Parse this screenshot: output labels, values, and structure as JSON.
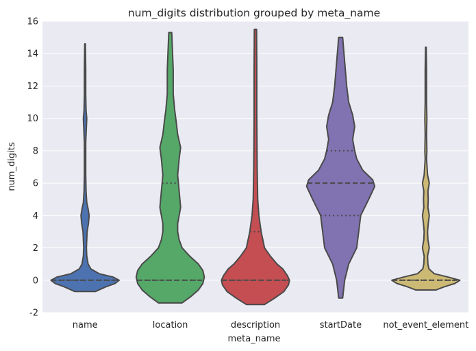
{
  "chart_data": {
    "type": "violin",
    "title": "num_digits distribution grouped by meta_name",
    "xlabel": "meta_name",
    "ylabel": "num_digits",
    "ylim": [
      -2,
      16
    ],
    "yticks": [
      -2,
      0,
      2,
      4,
      6,
      8,
      10,
      12,
      14,
      16
    ],
    "grid": true,
    "categories": [
      "name",
      "location",
      "description",
      "startDate",
      "not_event_element"
    ],
    "colors": [
      "#4c72b0",
      "#55a868",
      "#c44e52",
      "#8172b2",
      "#ccb974"
    ],
    "series": [
      {
        "category": "name",
        "range": [
          -0.7,
          14.6
        ],
        "quartiles": [
          0,
          0,
          0
        ],
        "profile": [
          [
            -0.7,
            0.3
          ],
          [
            -0.4,
            0.62
          ],
          [
            -0.2,
            0.88
          ],
          [
            0,
            1.0
          ],
          [
            0.2,
            0.82
          ],
          [
            0.4,
            0.42
          ],
          [
            0.7,
            0.17
          ],
          [
            1.0,
            0.09
          ],
          [
            1.5,
            0.05
          ],
          [
            2.0,
            0.04
          ],
          [
            2.5,
            0.05
          ],
          [
            3.0,
            0.06
          ],
          [
            3.5,
            0.1
          ],
          [
            4.0,
            0.12
          ],
          [
            4.4,
            0.09
          ],
          [
            4.8,
            0.05
          ],
          [
            5.5,
            0.03
          ],
          [
            6.5,
            0.02
          ],
          [
            7.5,
            0.02
          ],
          [
            8.5,
            0.02
          ],
          [
            9.5,
            0.04
          ],
          [
            10.0,
            0.05
          ],
          [
            10.5,
            0.03
          ],
          [
            11.5,
            0.02
          ],
          [
            13.0,
            0.02
          ],
          [
            14.6,
            0.01
          ]
        ]
      },
      {
        "category": "location",
        "range": [
          -1.4,
          15.3
        ],
        "quartiles": [
          0,
          0,
          6
        ],
        "profile": [
          [
            -1.4,
            0.08
          ],
          [
            -1.0,
            0.14
          ],
          [
            -0.6,
            0.19
          ],
          [
            -0.2,
            0.22
          ],
          [
            0.2,
            0.23
          ],
          [
            0.6,
            0.22
          ],
          [
            1.0,
            0.19
          ],
          [
            1.5,
            0.13
          ],
          [
            2.0,
            0.08
          ],
          [
            2.5,
            0.06
          ],
          [
            3.0,
            0.05
          ],
          [
            3.5,
            0.05
          ],
          [
            4.0,
            0.06
          ],
          [
            4.5,
            0.07
          ],
          [
            5.5,
            0.06
          ],
          [
            6.5,
            0.05
          ],
          [
            7.5,
            0.06
          ],
          [
            8.2,
            0.07
          ],
          [
            9.0,
            0.05
          ],
          [
            9.8,
            0.04
          ],
          [
            10.5,
            0.03
          ],
          [
            11.5,
            0.02
          ],
          [
            13.0,
            0.02
          ],
          [
            15.3,
            0.01
          ]
        ]
      },
      {
        "category": "description",
        "range": [
          -1.5,
          15.5
        ],
        "quartiles": [
          0,
          0,
          3
        ],
        "profile": [
          [
            -1.5,
            0.08
          ],
          [
            -1.1,
            0.17
          ],
          [
            -0.7,
            0.25
          ],
          [
            -0.3,
            0.29
          ],
          [
            0,
            0.3
          ],
          [
            0.3,
            0.28
          ],
          [
            0.7,
            0.24
          ],
          [
            1.0,
            0.19
          ],
          [
            1.5,
            0.13
          ],
          [
            2.0,
            0.08
          ],
          [
            3.0,
            0.05
          ],
          [
            4.0,
            0.03
          ],
          [
            5.0,
            0.02
          ],
          [
            7.0,
            0.015
          ],
          [
            10.0,
            0.012
          ],
          [
            13.0,
            0.012
          ],
          [
            15.5,
            0.01
          ]
        ]
      },
      {
        "category": "startDate",
        "range": [
          -1.1,
          15.0
        ],
        "quartiles": [
          4,
          6,
          8
        ],
        "profile": [
          [
            -1.1,
            0.01
          ],
          [
            0,
            0.02
          ],
          [
            1.0,
            0.04
          ],
          [
            2.0,
            0.08
          ],
          [
            3.0,
            0.09
          ],
          [
            4.0,
            0.1
          ],
          [
            5.0,
            0.14
          ],
          [
            5.8,
            0.17
          ],
          [
            6.2,
            0.16
          ],
          [
            6.8,
            0.11
          ],
          [
            7.5,
            0.08
          ],
          [
            8.0,
            0.07
          ],
          [
            8.7,
            0.06
          ],
          [
            9.5,
            0.07
          ],
          [
            10.2,
            0.06
          ],
          [
            11.0,
            0.04
          ],
          [
            12.0,
            0.03
          ],
          [
            13.5,
            0.02
          ],
          [
            15.0,
            0.01
          ]
        ]
      },
      {
        "category": "not_event_element",
        "range": [
          -0.6,
          14.4
        ],
        "quartiles": [
          0,
          0,
          0
        ],
        "profile": [
          [
            -0.6,
            0.3
          ],
          [
            -0.4,
            0.55
          ],
          [
            -0.2,
            0.85
          ],
          [
            0,
            1.0
          ],
          [
            0.2,
            0.65
          ],
          [
            0.4,
            0.25
          ],
          [
            0.7,
            0.09
          ],
          [
            1.0,
            0.06
          ],
          [
            1.5,
            0.05
          ],
          [
            2.0,
            0.1
          ],
          [
            2.5,
            0.06
          ],
          [
            3.0,
            0.05
          ],
          [
            3.5,
            0.07
          ],
          [
            4.0,
            0.1
          ],
          [
            4.5,
            0.06
          ],
          [
            5.0,
            0.07
          ],
          [
            5.5,
            0.06
          ],
          [
            6.0,
            0.1
          ],
          [
            6.5,
            0.05
          ],
          [
            7.5,
            0.02
          ],
          [
            8.0,
            0.03
          ],
          [
            9.0,
            0.02
          ],
          [
            10.0,
            0.03
          ],
          [
            11.0,
            0.02
          ],
          [
            12.0,
            0.02
          ],
          [
            13.0,
            0.02
          ],
          [
            14.4,
            0.01
          ]
        ]
      }
    ]
  }
}
